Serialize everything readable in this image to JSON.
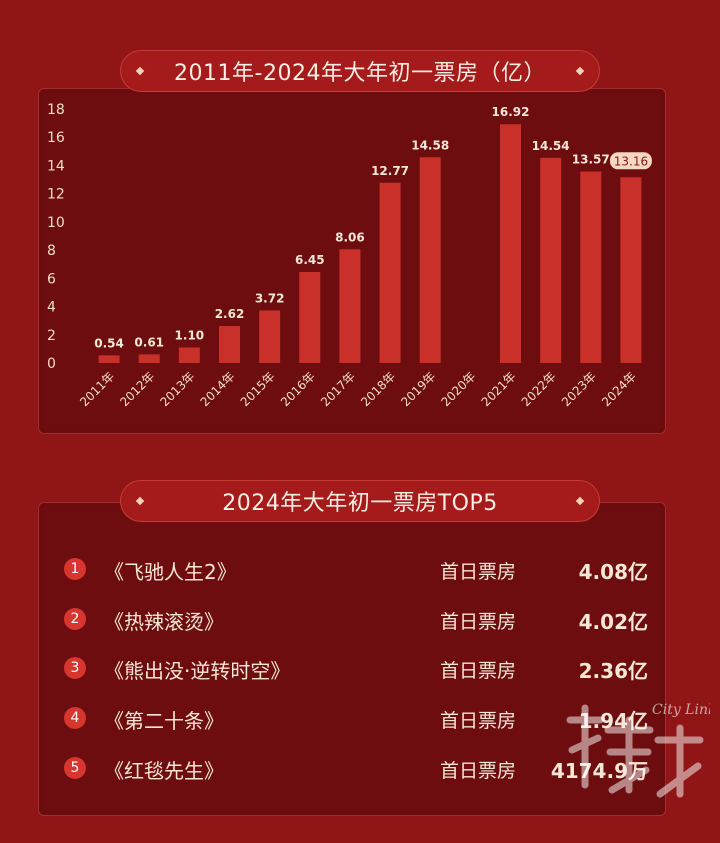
{
  "chart_title": "2011年-2024年大年初一票房（亿）",
  "chart_data": {
    "type": "bar",
    "title": "2011年-2024年大年初一票房（亿）",
    "categories": [
      "2011年",
      "2012年",
      "2013年",
      "2014年",
      "2015年",
      "2016年",
      "2017年",
      "2018年",
      "2019年",
      "2020年",
      "2021年",
      "2022年",
      "2023年",
      "2024年"
    ],
    "values": [
      0.54,
      0.61,
      1.1,
      2.62,
      3.72,
      6.45,
      8.06,
      12.77,
      14.58,
      null,
      16.92,
      14.54,
      13.57,
      13.16
    ],
    "value_labels": [
      "0.54",
      "0.61",
      "1.10",
      "2.62",
      "3.72",
      "6.45",
      "8.06",
      "12.77",
      "14.58",
      "",
      "16.92",
      "14.54",
      "13.57",
      "13.16"
    ],
    "ylim": [
      0,
      18
    ],
    "yticks": [
      "0",
      "2",
      "4",
      "6",
      "8",
      "10",
      "12",
      "14",
      "16",
      "18"
    ],
    "highlight_index": 13,
    "bar_color": "#c9302a",
    "highlight_label_bg": "#f5d8c2",
    "grid": false
  },
  "top5": {
    "title": "2024年大年初一票房TOP5",
    "items": [
      {
        "rank": "1",
        "name": "《飞驰人生2》",
        "label": "首日票房",
        "value": "4.08亿"
      },
      {
        "rank": "2",
        "name": "《热辣滚烫》",
        "label": "首日票房",
        "value": "4.02亿"
      },
      {
        "rank": "3",
        "name": "《熊出没·逆转时空》",
        "label": "首日票房",
        "value": "2.36亿"
      },
      {
        "rank": "4",
        "name": "《第二十条》",
        "label": "首日票房",
        "value": "1.94亿"
      },
      {
        "rank": "5",
        "name": "《红毯先生》",
        "label": "首日票房",
        "value": "4174.9万"
      }
    ]
  },
  "watermark": {
    "brand": "City Link",
    "icon": "citylink-logo-icon"
  },
  "colors": {
    "background": "#8f1516",
    "panel": "#6e0d0f",
    "accent": "#c9302a",
    "rank_badge": "#d6362d"
  }
}
